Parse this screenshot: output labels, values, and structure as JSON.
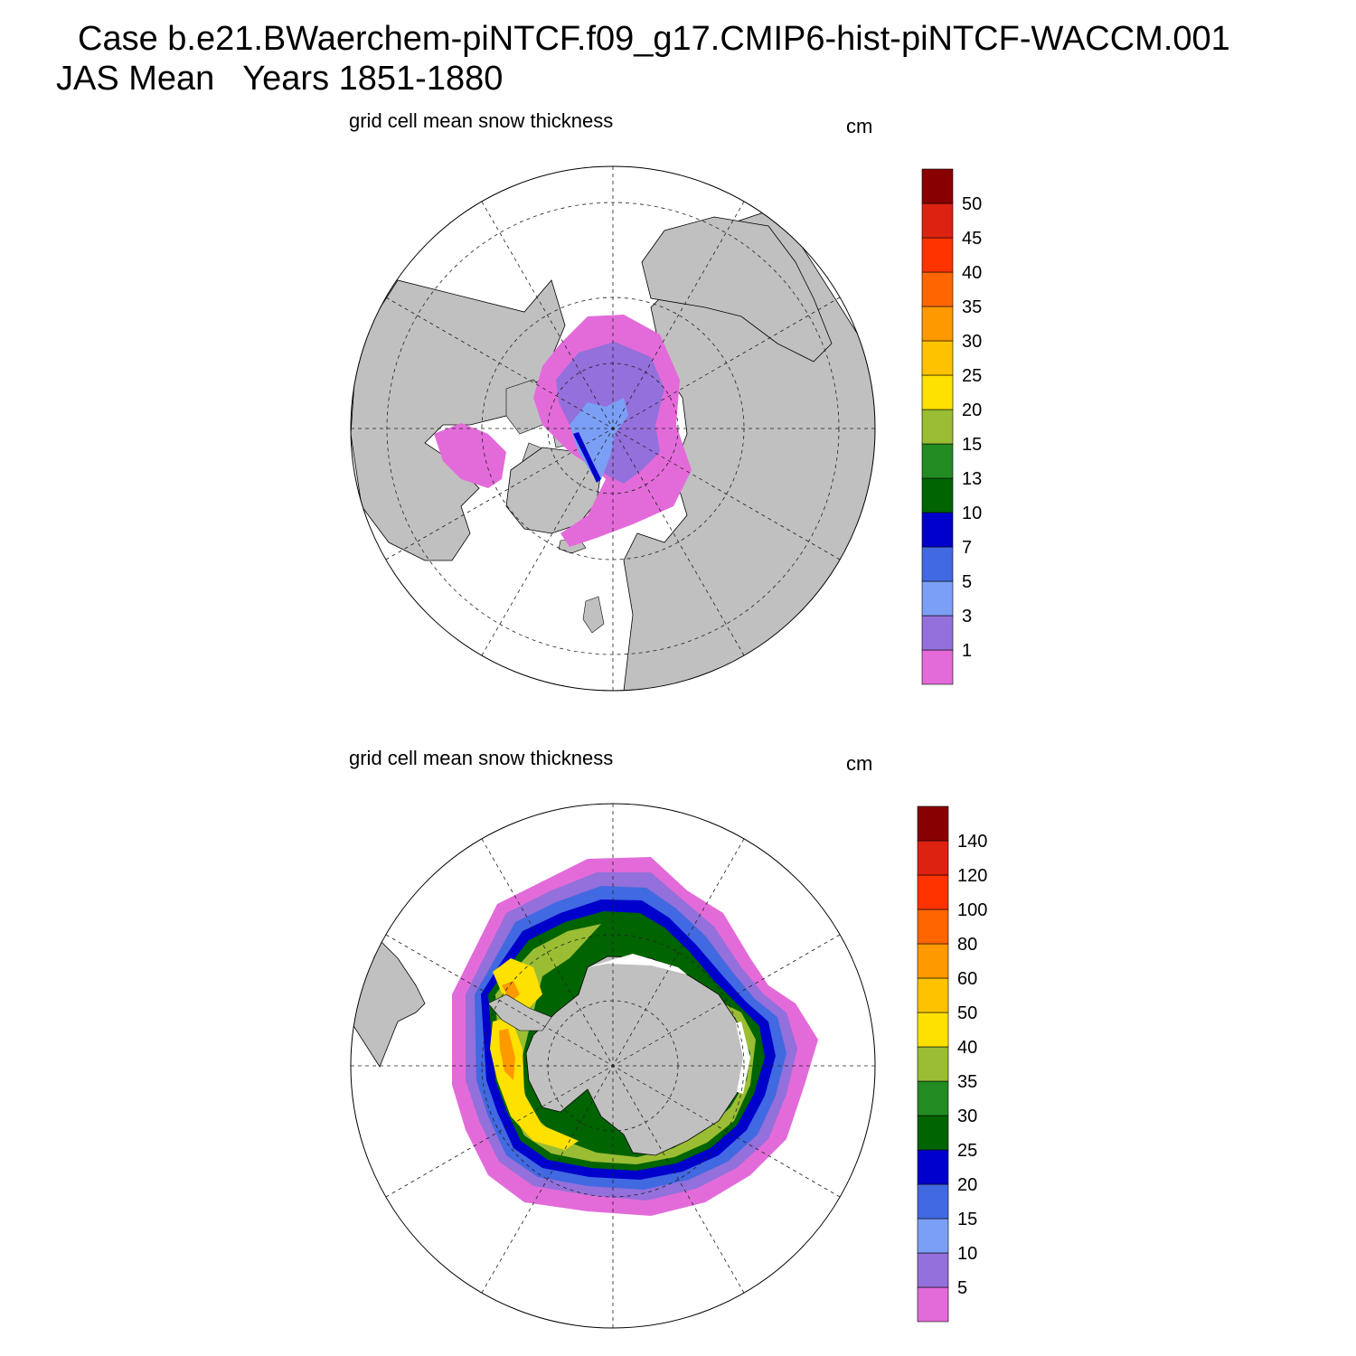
{
  "header": {
    "case_line": "Case b.e21.BWaerchem-piNTCF.f09_g17.CMIP6-hist-piNTCF-WACCM.001",
    "period_line": "JAS Mean   Years 1851-1880"
  },
  "colors": {
    "land": "#c0c0c0",
    "open_ocean": "#ffffff",
    "scale": [
      "#e36bd9",
      "#9370db",
      "#7b9ff5",
      "#4169e1",
      "#0000cd",
      "#006400",
      "#228b22",
      "#9abd33",
      "#ffe100",
      "#ffc200",
      "#ff9900",
      "#ff6600",
      "#ff3300",
      "#dd2211",
      "#880000"
    ]
  },
  "panels": [
    {
      "id": "north",
      "title": "grid cell mean snow thickness",
      "units": "cm",
      "hemisphere": "Northern",
      "levels": [
        "1",
        "3",
        "5",
        "7",
        "10",
        "13",
        "15",
        "20",
        "25",
        "30",
        "35",
        "40",
        "45",
        "50"
      ]
    },
    {
      "id": "south",
      "title": "grid cell mean snow thickness",
      "units": "cm",
      "hemisphere": "Southern",
      "levels": [
        "5",
        "10",
        "15",
        "20",
        "25",
        "30",
        "35",
        "40",
        "50",
        "60",
        "80",
        "100",
        "120",
        "140"
      ]
    }
  ]
}
